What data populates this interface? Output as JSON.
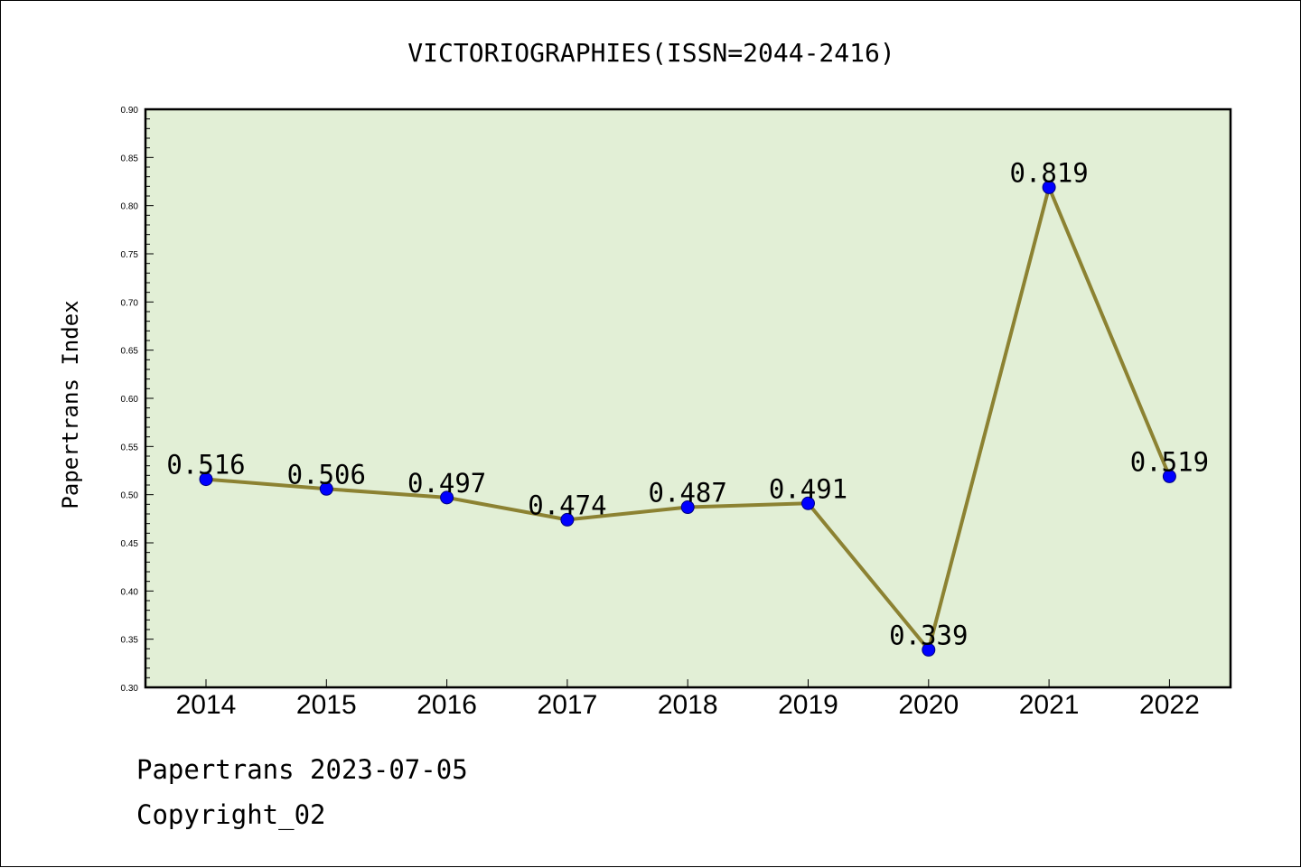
{
  "chart_data": {
    "type": "line",
    "title": "VICTORIOGRAPHIES(ISSN=2044-2416)",
    "xlabel": "",
    "ylabel": "Papertrans Index",
    "categories": [
      "2014",
      "2015",
      "2016",
      "2017",
      "2018",
      "2019",
      "2020",
      "2021",
      "2022"
    ],
    "series": [
      {
        "values": [
          0.516,
          0.506,
          0.497,
          0.474,
          0.487,
          0.491,
          0.339,
          0.819,
          0.519
        ],
        "data_labels": [
          "0.516",
          "0.506",
          "0.497",
          "0.474",
          "0.487",
          "0.491",
          "0.339",
          "0.819",
          "0.519"
        ]
      }
    ],
    "ylim": [
      0.3,
      0.9
    ],
    "yticks": [
      "0.30",
      "0.35",
      "0.40",
      "0.45",
      "0.50",
      "0.55",
      "0.60",
      "0.65",
      "0.70",
      "0.75",
      "0.80",
      "0.85",
      "0.90"
    ],
    "grid": false,
    "legend": "none",
    "colors": {
      "plot_background": "#e2efd6",
      "line": "#8c8232",
      "marker_fill": "#0000ff",
      "marker_edge": "#000080"
    }
  },
  "footer": {
    "line1": "Papertrans 2023-07-05",
    "line2": "Copyright_02"
  }
}
